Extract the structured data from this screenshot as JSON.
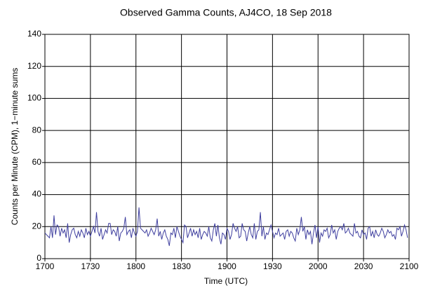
{
  "chart_data": {
    "type": "line",
    "title": "Observed Gamma Counts, AJ4CO, 18 Sep 2018",
    "x_label": "Time (UTC)",
    "y_label": "Counts per Minute (CPM), 1−minute sums",
    "xlim": [
      0,
      240
    ],
    "xticks": [
      {
        "value": 0,
        "label": "1700"
      },
      {
        "value": 30,
        "label": "1730"
      },
      {
        "value": 60,
        "label": "1800"
      },
      {
        "value": 90,
        "label": "1830"
      },
      {
        "value": 120,
        "label": "1900"
      },
      {
        "value": 150,
        "label": "1930"
      },
      {
        "value": 180,
        "label": "2000"
      },
      {
        "value": 210,
        "label": "2030"
      },
      {
        "value": 240,
        "label": "2100"
      }
    ],
    "ylim": [
      0,
      140
    ],
    "yticks": [
      0,
      20,
      40,
      60,
      80,
      100,
      120,
      140
    ],
    "grid": true,
    "series": [
      {
        "color": "#3f3f9f",
        "x": [
          0,
          1,
          2,
          3,
          4,
          5,
          6,
          7,
          8,
          9,
          10,
          11,
          12,
          13,
          14,
          15,
          16,
          17,
          18,
          19,
          20,
          21,
          22,
          23,
          24,
          25,
          26,
          27,
          28,
          29,
          30,
          31,
          32,
          33,
          34,
          35,
          36,
          37,
          38,
          39,
          40,
          41,
          42,
          43,
          44,
          45,
          46,
          47,
          48,
          49,
          50,
          51,
          52,
          53,
          54,
          55,
          56,
          57,
          58,
          59,
          60,
          61,
          62,
          63,
          64,
          65,
          66,
          67,
          68,
          69,
          70,
          71,
          72,
          73,
          74,
          75,
          76,
          77,
          78,
          79,
          80,
          81,
          82,
          83,
          84,
          85,
          86,
          87,
          88,
          89,
          90,
          91,
          92,
          93,
          94,
          95,
          96,
          97,
          98,
          99,
          100,
          101,
          102,
          103,
          104,
          105,
          106,
          107,
          108,
          109,
          110,
          111,
          112,
          113,
          114,
          115,
          116,
          117,
          118,
          119,
          120,
          121,
          122,
          123,
          124,
          125,
          126,
          127,
          128,
          129,
          130,
          131,
          132,
          133,
          134,
          135,
          136,
          137,
          138,
          139,
          140,
          141,
          142,
          143,
          144,
          145,
          146,
          147,
          148,
          149,
          150,
          151,
          152,
          153,
          154,
          155,
          156,
          157,
          158,
          159,
          160,
          161,
          162,
          163,
          164,
          165,
          166,
          167,
          168,
          169,
          170,
          171,
          172,
          173,
          174,
          175,
          176,
          177,
          178,
          179,
          180,
          181,
          182,
          183,
          184,
          185,
          186,
          187,
          188,
          189,
          190,
          191,
          192,
          193,
          194,
          195,
          196,
          197,
          198,
          199,
          200,
          201,
          202,
          203,
          204,
          205,
          206,
          207,
          208,
          209,
          210,
          211,
          212,
          213,
          214,
          215,
          216,
          217,
          218,
          219,
          220,
          221,
          222,
          223,
          224,
          225,
          226,
          227,
          228,
          229,
          230,
          231,
          232,
          233,
          234,
          235,
          236,
          237,
          238,
          239
        ],
        "values": [
          16,
          15,
          14,
          13,
          20,
          13,
          27,
          15,
          21,
          20,
          14,
          19,
          16,
          18,
          13,
          22,
          10,
          15,
          18,
          19,
          15,
          13,
          17,
          14,
          18,
          16,
          13,
          19,
          15,
          17,
          14,
          17,
          20,
          16,
          29,
          17,
          14,
          19,
          12,
          15,
          18,
          16,
          22,
          22,
          15,
          18,
          17,
          14,
          20,
          11,
          16,
          17,
          19,
          26,
          15,
          17,
          18,
          13,
          19,
          16,
          14,
          17,
          32,
          19,
          18,
          17,
          16,
          18,
          14,
          16,
          19,
          17,
          15,
          18,
          25,
          14,
          17,
          12,
          16,
          18,
          14,
          12,
          8,
          16,
          15,
          19,
          13,
          20,
          17,
          14,
          12,
          10,
          21,
          20,
          13,
          16,
          19,
          14,
          18,
          15,
          17,
          13,
          19,
          12,
          15,
          17,
          16,
          14,
          20,
          13,
          11,
          18,
          22,
          14,
          21,
          13,
          9,
          16,
          15,
          12,
          19,
          17,
          12,
          15,
          22,
          19,
          17,
          20,
          13,
          14,
          22,
          18,
          17,
          11,
          16,
          20,
          15,
          13,
          22,
          12,
          17,
          18,
          29,
          14,
          20,
          12,
          16,
          15,
          18,
          21,
          17,
          13,
          16,
          15,
          19,
          14,
          15,
          16,
          12,
          17,
          18,
          14,
          17,
          16,
          13,
          11,
          19,
          15,
          18,
          26,
          17,
          20,
          12,
          18,
          15,
          17,
          9,
          16,
          21,
          13,
          20,
          10,
          16,
          14,
          18,
          17,
          19,
          13,
          15,
          21,
          16,
          18,
          12,
          17,
          19,
          20,
          18,
          22,
          16,
          17,
          19,
          16,
          15,
          14,
          22,
          16,
          17,
          14,
          13,
          18,
          15,
          16,
          12,
          19,
          20,
          14,
          17,
          13,
          18,
          15,
          14,
          16,
          19,
          17,
          13,
          15,
          18,
          16,
          17,
          14,
          15,
          12,
          19,
          18,
          20,
          14,
          17,
          21,
          18,
          13
        ]
      }
    ]
  }
}
